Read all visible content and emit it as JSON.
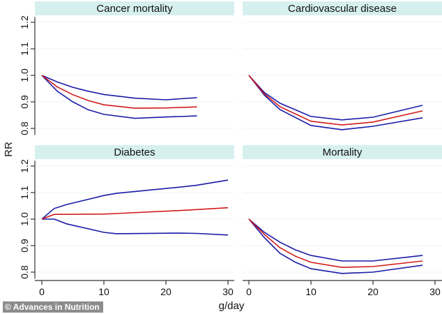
{
  "credit": "© Advances in Nutrition",
  "chart_data": {
    "type": "line",
    "ylabel": "RR",
    "xlabel": "g/day",
    "ylim": [
      0.78,
      1.23
    ],
    "xlim": [
      -1,
      31
    ],
    "yticks": [
      "0.8",
      "0.9",
      "1.0",
      "1.1",
      "1.2"
    ],
    "ytick_values": [
      0.8,
      0.9,
      1.0,
      1.1,
      1.2
    ],
    "xticks": [
      "0",
      "10",
      "20",
      "30"
    ],
    "xtick_values": [
      0,
      10,
      20,
      30
    ],
    "grid": true,
    "legend": "none",
    "series_names": [
      "upper 95% CI",
      "RR",
      "lower 95% CI"
    ],
    "series_colors": {
      "upper": "#1a1aa8",
      "rr": "#d31a1a",
      "lower": "#1a1aa8"
    },
    "panels": [
      {
        "title": "Cancer mortality",
        "x": [
          0,
          2.5,
          5,
          7.5,
          10,
          15,
          20,
          25
        ],
        "upper": [
          1.0,
          0.975,
          0.955,
          0.94,
          0.928,
          0.914,
          0.908,
          0.916
        ],
        "rr": [
          1.0,
          0.956,
          0.927,
          0.905,
          0.889,
          0.876,
          0.877,
          0.881
        ],
        "lower": [
          1.0,
          0.94,
          0.9,
          0.87,
          0.853,
          0.838,
          0.843,
          0.847
        ]
      },
      {
        "title": "Cardiovascular disease",
        "x": [
          0,
          2.5,
          5,
          10,
          15,
          20,
          28
        ],
        "upper": [
          1.0,
          0.935,
          0.895,
          0.845,
          0.832,
          0.842,
          0.887
        ],
        "rr": [
          1.0,
          0.93,
          0.882,
          0.827,
          0.813,
          0.824,
          0.866
        ],
        "lower": [
          1.0,
          0.925,
          0.871,
          0.811,
          0.795,
          0.808,
          0.84
        ]
      },
      {
        "title": "Diabetes",
        "x": [
          0,
          2,
          4,
          10,
          12,
          22,
          25,
          30
        ],
        "upper": [
          1.0,
          1.04,
          1.055,
          1.089,
          1.097,
          1.12,
          1.128,
          1.147
        ],
        "rr": [
          1.0,
          1.018,
          1.018,
          1.019,
          1.021,
          1.032,
          1.036,
          1.043
        ],
        "lower": [
          1.0,
          1.0,
          0.982,
          0.95,
          0.945,
          0.947,
          0.946,
          0.94
        ]
      },
      {
        "title": "Mortality",
        "x": [
          0,
          2.5,
          5,
          7.5,
          10,
          15,
          20,
          28
        ],
        "upper": [
          1.0,
          0.95,
          0.913,
          0.884,
          0.863,
          0.842,
          0.842,
          0.863
        ],
        "rr": [
          1.0,
          0.942,
          0.892,
          0.86,
          0.837,
          0.818,
          0.821,
          0.842
        ],
        "lower": [
          1.0,
          0.93,
          0.871,
          0.837,
          0.813,
          0.795,
          0.8,
          0.826
        ]
      }
    ]
  }
}
